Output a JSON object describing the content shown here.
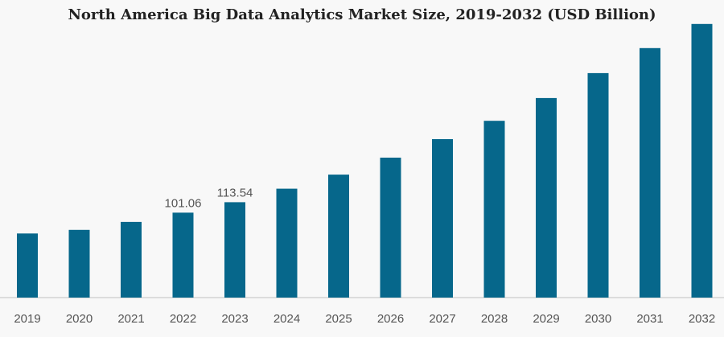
{
  "chart_data": {
    "type": "bar",
    "title": "North America Big Data Analytics Market Size, 2019-2032 (USD Billion)",
    "xlabel": "",
    "ylabel": "",
    "categories": [
      "2019",
      "2020",
      "2021",
      "2022",
      "2023",
      "2024",
      "2025",
      "2026",
      "2027",
      "2028",
      "2029",
      "2030",
      "2031",
      "2032"
    ],
    "values": [
      76.3,
      80.6,
      90.1,
      101.06,
      113.54,
      129.6,
      146.3,
      166.5,
      188.6,
      210.4,
      237.5,
      267.1,
      296.9,
      325.6
    ],
    "data_labels": {
      "3": "101.06",
      "4": "113.54"
    },
    "ylim": [
      0,
      335
    ],
    "bar_color": "#06678b",
    "axis_color": "#bfbfbf",
    "grid": false,
    "legend": "none"
  }
}
